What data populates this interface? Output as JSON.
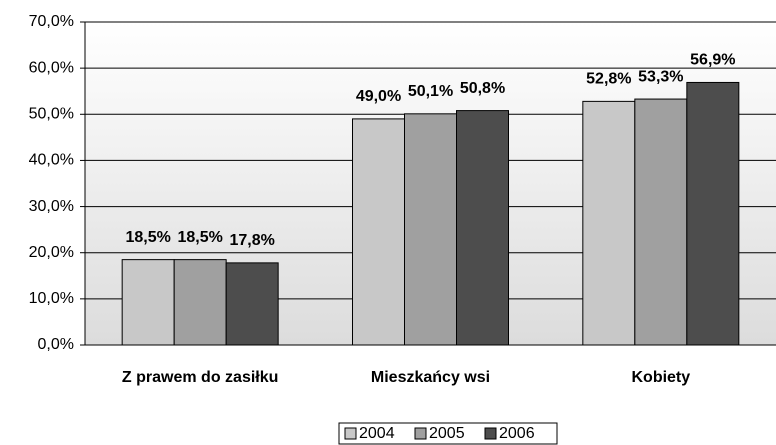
{
  "chart_data": {
    "type": "bar",
    "categories": [
      "Z prawem do zasiłku",
      "Mieszkańcy wsi",
      "Kobiety"
    ],
    "series": [
      {
        "name": "2004",
        "color": "#c8c8c8",
        "values": [
          18.5,
          49.0,
          52.8
        ],
        "value_labels": [
          "18,5%",
          "49,0%",
          "52,8%"
        ]
      },
      {
        "name": "2005",
        "color": "#a0a0a0",
        "values": [
          18.5,
          50.1,
          53.3
        ],
        "value_labels": [
          "18,5%",
          "50,1%",
          "53,3%"
        ]
      },
      {
        "name": "2006",
        "color": "#4d4d4d",
        "values": [
          17.8,
          50.8,
          56.9
        ],
        "value_labels": [
          "17,8%",
          "50,8%",
          "56,9%"
        ]
      }
    ],
    "ylim": [
      0,
      70
    ],
    "yticks": [
      {
        "value": 0,
        "label": "0,0%"
      },
      {
        "value": 10,
        "label": "10,0%"
      },
      {
        "value": 20,
        "label": "20,0%"
      },
      {
        "value": 30,
        "label": "30,0%"
      },
      {
        "value": 40,
        "label": "40,0%"
      },
      {
        "value": 50,
        "label": "50,0%"
      },
      {
        "value": 60,
        "label": "60,0%"
      },
      {
        "value": 70,
        "label": "70,0%"
      }
    ],
    "grid": true,
    "legend": "bottom"
  }
}
